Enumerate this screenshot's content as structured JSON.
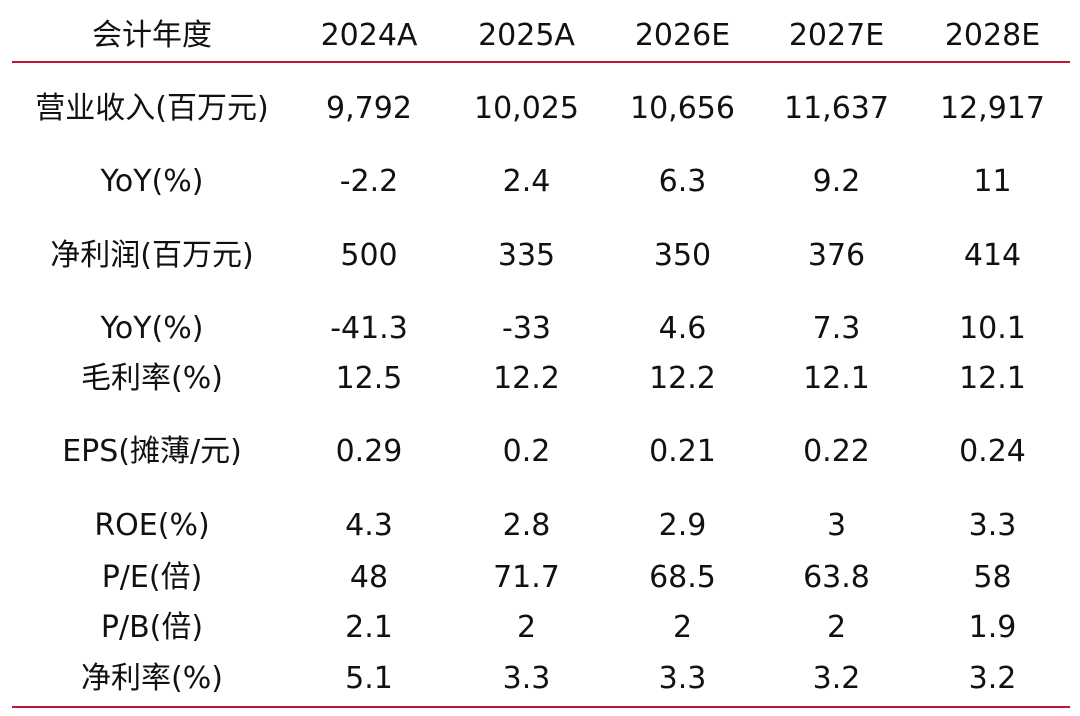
{
  "colors": {
    "rule": "#c0163a",
    "text": "#111111"
  },
  "header": [
    "会计年度",
    "2024A",
    "2025A",
    "2026E",
    "2027E",
    "2028E"
  ],
  "rows": [
    [
      "营业收入(百万元)",
      "9,792",
      "10,025",
      "10,656",
      "11,637",
      "12,917"
    ],
    [
      "YoY(%)",
      "-2.2",
      "2.4",
      "6.3",
      "9.2",
      "11"
    ],
    [
      "净利润(百万元)",
      "500",
      "335",
      "350",
      "376",
      "414"
    ],
    [
      "YoY(%)",
      "-41.3",
      "-33",
      "4.6",
      "7.3",
      "10.1"
    ],
    [
      "毛利率(%)",
      "12.5",
      "12.2",
      "12.2",
      "12.1",
      "12.1"
    ],
    [
      "EPS(摊薄/元)",
      "0.29",
      "0.2",
      "0.21",
      "0.22",
      "0.24"
    ],
    [
      "ROE(%)",
      "4.3",
      "2.8",
      "2.9",
      "3",
      "3.3"
    ],
    [
      "P/E(倍)",
      "48",
      "71.7",
      "68.5",
      "63.8",
      "58"
    ],
    [
      "P/B(倍)",
      "2.1",
      "2",
      "2",
      "2",
      "1.9"
    ],
    [
      "净利率(%)",
      "5.1",
      "3.3",
      "3.3",
      "3.2",
      "3.2"
    ]
  ]
}
